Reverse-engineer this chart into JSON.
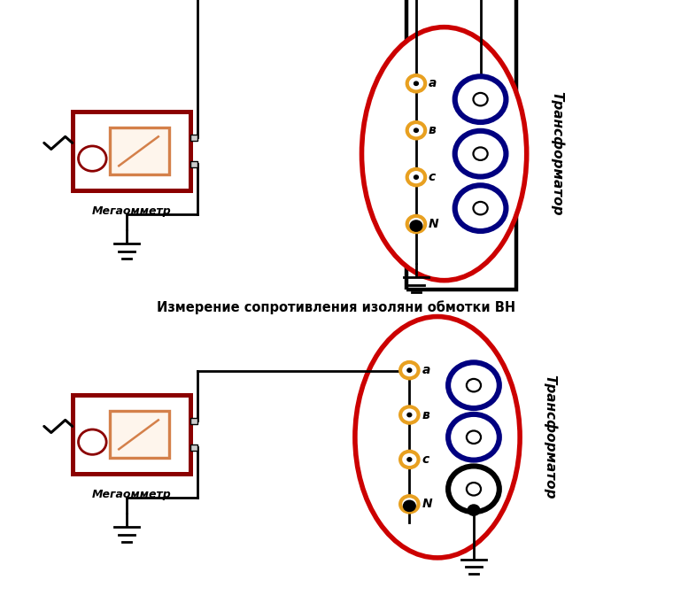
{
  "title_center": "Измерение сопротивления изоляни обмотки ВН",
  "label_megaohmmeter": "Мегаомметр",
  "label_transformer": "Трансформатор",
  "terminals": [
    "a",
    "в",
    "c",
    "N"
  ],
  "bg_color": "#ffffff",
  "dark_red": "#8B0000",
  "orange_ring": "#E8A020",
  "orange_meter": "#D4804A",
  "blue_coil": "#000080",
  "black": "#000000",
  "red_ellipse": "#CC0000",
  "lw_main": 2.0,
  "figsize": [
    7.6,
    6.81
  ],
  "dpi": 100
}
